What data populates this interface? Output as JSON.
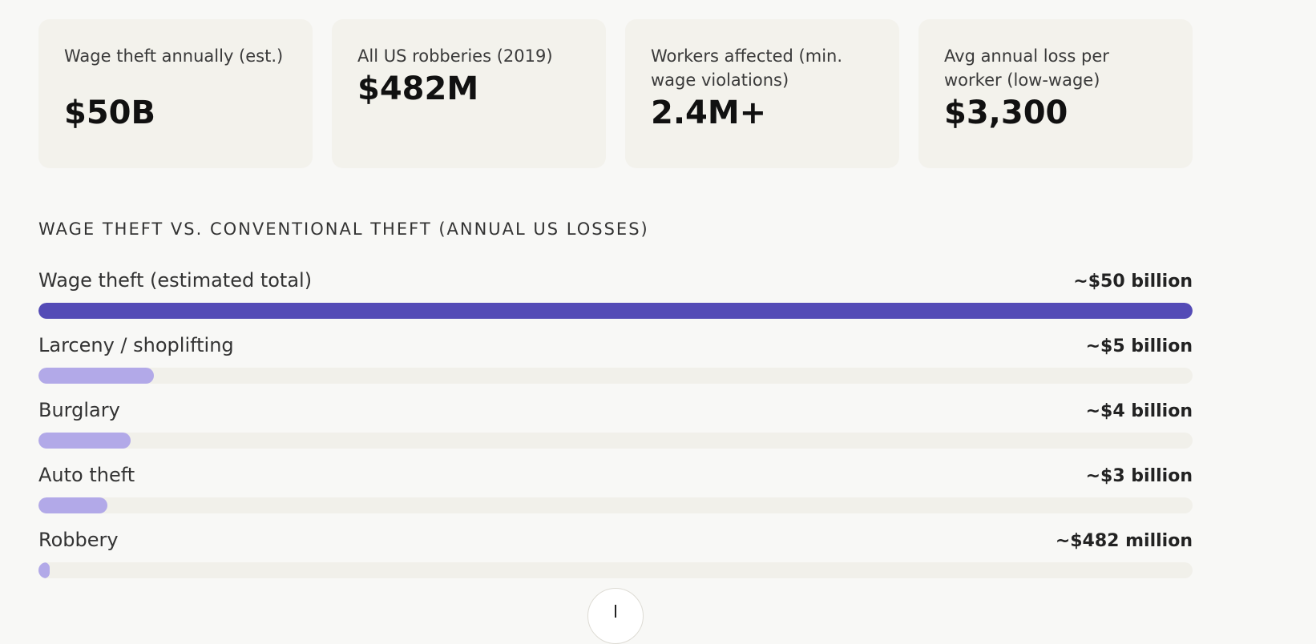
{
  "stats": [
    {
      "label": "Wage theft annually (est.)",
      "value": "$50B"
    },
    {
      "label": "All US robberies (2019)",
      "value": "$482M"
    },
    {
      "label": "Workers affected (min. wage violations)",
      "value": "2.4M+"
    },
    {
      "label": "Avg annual loss per worker (low-wage)",
      "value": "$3,300"
    }
  ],
  "comparison": {
    "title": "Wage theft vs. conventional theft (annual US losses)"
  },
  "chart_data": {
    "type": "bar",
    "orientation": "horizontal",
    "title": "Wage theft vs. conventional theft (annual US losses)",
    "unit": "USD billions",
    "categories": [
      "Wage theft (estimated total)",
      "Larceny / shoplifting",
      "Burglary",
      "Auto theft",
      "Robbery"
    ],
    "values": [
      50,
      5,
      4,
      3,
      0.482
    ],
    "value_labels": [
      "~$50 billion",
      "~$5 billion",
      "~$4 billion",
      "~$3 billion",
      "~$482 million"
    ],
    "xlim": [
      0,
      50
    ],
    "colors": {
      "primary": "#544bb6",
      "secondary": "#b2a9e8",
      "track": "#f1f0ea"
    }
  },
  "fab": {
    "icon": "arrow-down-icon"
  }
}
